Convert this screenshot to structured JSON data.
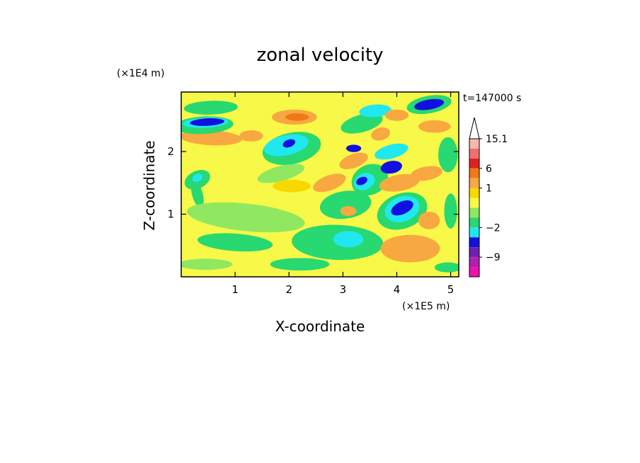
{
  "chart_data": {
    "type": "heatmap",
    "title": "zonal velocity",
    "xlabel": "X-coordinate",
    "ylabel": "Z-coordinate",
    "x_unit": "(×1E5 m)",
    "y_unit": "(×1E4 m)",
    "time_label": "t=147000 s",
    "xlim": [
      0,
      5.15
    ],
    "ylim": [
      0,
      2.95
    ],
    "x_ticks": [
      "1",
      "2",
      "3",
      "4",
      "5"
    ],
    "y_ticks": [
      "1",
      "2"
    ],
    "colorbar": {
      "labels": [
        "15.1",
        "6",
        "1",
        "−2",
        "−9"
      ],
      "levels": [
        15.1,
        12,
        9,
        6,
        3,
        1,
        0.5,
        0,
        -1,
        -2,
        -4,
        -6,
        -9,
        -12
      ],
      "colors": [
        "#f8b8b0",
        "#f07070",
        "#e02020",
        "#f07818",
        "#f8a840",
        "#f8d800",
        "#f8f848",
        "#90e860",
        "#28d870",
        "#20e8f0",
        "#1010e0",
        "#7020b0",
        "#b020b0",
        "#f010b0"
      ],
      "extend_max_color": "#ffffff"
    },
    "background_color": "#f8f848",
    "features": [
      {
        "x": 0.3,
        "y": 1.32,
        "rx": 0.1,
        "ry": 0.22,
        "rot": -15,
        "color": "#28d870"
      },
      {
        "x": 0.55,
        "y": 2.22,
        "rx": 0.58,
        "ry": 0.12,
        "rot": 3,
        "color": "#f8a840"
      },
      {
        "x": 0.55,
        "y": 2.7,
        "rx": 0.5,
        "ry": 0.11,
        "rot": -2,
        "color": "#28d870"
      },
      {
        "x": 0.42,
        "y": 2.42,
        "rx": 0.55,
        "ry": 0.14,
        "rot": -3,
        "color": "#28d870"
      },
      {
        "x": 0.45,
        "y": 2.46,
        "rx": 0.42,
        "ry": 0.08,
        "rot": -3,
        "color": "#20e8f0"
      },
      {
        "x": 0.48,
        "y": 2.47,
        "rx": 0.32,
        "ry": 0.06,
        "rot": -3,
        "color": "#1010e0"
      },
      {
        "x": 0.3,
        "y": 1.55,
        "rx": 0.25,
        "ry": 0.14,
        "rot": -25,
        "color": "#28d870"
      },
      {
        "x": 0.3,
        "y": 1.58,
        "rx": 0.1,
        "ry": 0.06,
        "rot": -25,
        "color": "#20e8f0"
      },
      {
        "x": 1.2,
        "y": 0.95,
        "rx": 1.1,
        "ry": 0.22,
        "rot": 6,
        "color": "#90e860"
      },
      {
        "x": 1.0,
        "y": 0.55,
        "rx": 0.7,
        "ry": 0.14,
        "rot": 4,
        "color": "#28d870"
      },
      {
        "x": 0.45,
        "y": 0.2,
        "rx": 0.5,
        "ry": 0.09,
        "rot": 0,
        "color": "#90e860"
      },
      {
        "x": 2.2,
        "y": 0.2,
        "rx": 0.55,
        "ry": 0.1,
        "rot": 0,
        "color": "#28d870"
      },
      {
        "x": 1.85,
        "y": 1.65,
        "rx": 0.45,
        "ry": 0.12,
        "rot": -15,
        "color": "#90e860"
      },
      {
        "x": 2.05,
        "y": 2.05,
        "rx": 0.55,
        "ry": 0.25,
        "rot": -12,
        "color": "#28d870"
      },
      {
        "x": 1.95,
        "y": 2.1,
        "rx": 0.42,
        "ry": 0.16,
        "rot": -12,
        "color": "#20e8f0"
      },
      {
        "x": 2.0,
        "y": 2.13,
        "rx": 0.12,
        "ry": 0.06,
        "rot": -20,
        "color": "#1010e0"
      },
      {
        "x": 1.3,
        "y": 2.25,
        "rx": 0.22,
        "ry": 0.09,
        "rot": 0,
        "color": "#f8a840"
      },
      {
        "x": 2.1,
        "y": 2.55,
        "rx": 0.42,
        "ry": 0.12,
        "rot": 0,
        "color": "#f8a840"
      },
      {
        "x": 2.15,
        "y": 2.55,
        "rx": 0.22,
        "ry": 0.06,
        "rot": 0,
        "color": "#f07818"
      },
      {
        "x": 2.05,
        "y": 1.45,
        "rx": 0.35,
        "ry": 0.1,
        "rot": 0,
        "color": "#f8d800"
      },
      {
        "x": 2.9,
        "y": 0.55,
        "rx": 0.85,
        "ry": 0.28,
        "rot": 2,
        "color": "#28d870"
      },
      {
        "x": 3.1,
        "y": 0.6,
        "rx": 0.28,
        "ry": 0.13,
        "rot": 0,
        "color": "#20e8f0"
      },
      {
        "x": 3.05,
        "y": 1.15,
        "rx": 0.48,
        "ry": 0.22,
        "rot": -8,
        "color": "#28d870"
      },
      {
        "x": 3.1,
        "y": 1.05,
        "rx": 0.15,
        "ry": 0.08,
        "rot": 0,
        "color": "#f8a840"
      },
      {
        "x": 3.5,
        "y": 1.55,
        "rx": 0.35,
        "ry": 0.24,
        "rot": -25,
        "color": "#28d870"
      },
      {
        "x": 3.4,
        "y": 1.52,
        "rx": 0.2,
        "ry": 0.13,
        "rot": -25,
        "color": "#20e8f0"
      },
      {
        "x": 3.35,
        "y": 1.53,
        "rx": 0.11,
        "ry": 0.06,
        "rot": -25,
        "color": "#1010e0"
      },
      {
        "x": 3.2,
        "y": 1.85,
        "rx": 0.28,
        "ry": 0.11,
        "rot": -20,
        "color": "#f8a840"
      },
      {
        "x": 2.75,
        "y": 1.5,
        "rx": 0.32,
        "ry": 0.12,
        "rot": -20,
        "color": "#f8a840"
      },
      {
        "x": 3.35,
        "y": 2.45,
        "rx": 0.4,
        "ry": 0.14,
        "rot": -15,
        "color": "#28d870"
      },
      {
        "x": 3.6,
        "y": 2.65,
        "rx": 0.3,
        "ry": 0.1,
        "rot": -5,
        "color": "#20e8f0"
      },
      {
        "x": 3.7,
        "y": 2.28,
        "rx": 0.18,
        "ry": 0.1,
        "rot": -15,
        "color": "#f8a840"
      },
      {
        "x": 4.0,
        "y": 2.58,
        "rx": 0.22,
        "ry": 0.09,
        "rot": 0,
        "color": "#f8a840"
      },
      {
        "x": 3.9,
        "y": 2.0,
        "rx": 0.32,
        "ry": 0.11,
        "rot": -15,
        "color": "#20e8f0"
      },
      {
        "x": 3.2,
        "y": 2.05,
        "rx": 0.14,
        "ry": 0.06,
        "rot": 0,
        "color": "#1010e0"
      },
      {
        "x": 4.05,
        "y": 1.5,
        "rx": 0.38,
        "ry": 0.13,
        "rot": -10,
        "color": "#f8a840"
      },
      {
        "x": 3.9,
        "y": 1.75,
        "rx": 0.2,
        "ry": 0.1,
        "rot": -10,
        "color": "#1010e0"
      },
      {
        "x": 4.1,
        "y": 1.05,
        "rx": 0.48,
        "ry": 0.28,
        "rot": -20,
        "color": "#28d870"
      },
      {
        "x": 4.1,
        "y": 1.08,
        "rx": 0.33,
        "ry": 0.2,
        "rot": -20,
        "color": "#20e8f0"
      },
      {
        "x": 4.1,
        "y": 1.1,
        "rx": 0.22,
        "ry": 0.1,
        "rot": -25,
        "color": "#1010e0"
      },
      {
        "x": 4.25,
        "y": 0.45,
        "rx": 0.55,
        "ry": 0.22,
        "rot": 0,
        "color": "#f8a840"
      },
      {
        "x": 4.6,
        "y": 2.75,
        "rx": 0.42,
        "ry": 0.14,
        "rot": -10,
        "color": "#28d870"
      },
      {
        "x": 4.6,
        "y": 2.75,
        "rx": 0.28,
        "ry": 0.08,
        "rot": -10,
        "color": "#1010e0"
      },
      {
        "x": 4.7,
        "y": 2.4,
        "rx": 0.3,
        "ry": 0.1,
        "rot": 0,
        "color": "#f8a840"
      },
      {
        "x": 4.95,
        "y": 1.95,
        "rx": 0.18,
        "ry": 0.28,
        "rot": 0,
        "color": "#28d870"
      },
      {
        "x": 4.55,
        "y": 1.65,
        "rx": 0.3,
        "ry": 0.11,
        "rot": -10,
        "color": "#f8a840"
      },
      {
        "x": 4.6,
        "y": 0.9,
        "rx": 0.2,
        "ry": 0.14,
        "rot": 0,
        "color": "#f8a840"
      },
      {
        "x": 5.0,
        "y": 1.05,
        "rx": 0.12,
        "ry": 0.28,
        "rot": 0,
        "color": "#28d870"
      },
      {
        "x": 4.95,
        "y": 0.15,
        "rx": 0.25,
        "ry": 0.08,
        "rot": 0,
        "color": "#28d870"
      }
    ]
  }
}
